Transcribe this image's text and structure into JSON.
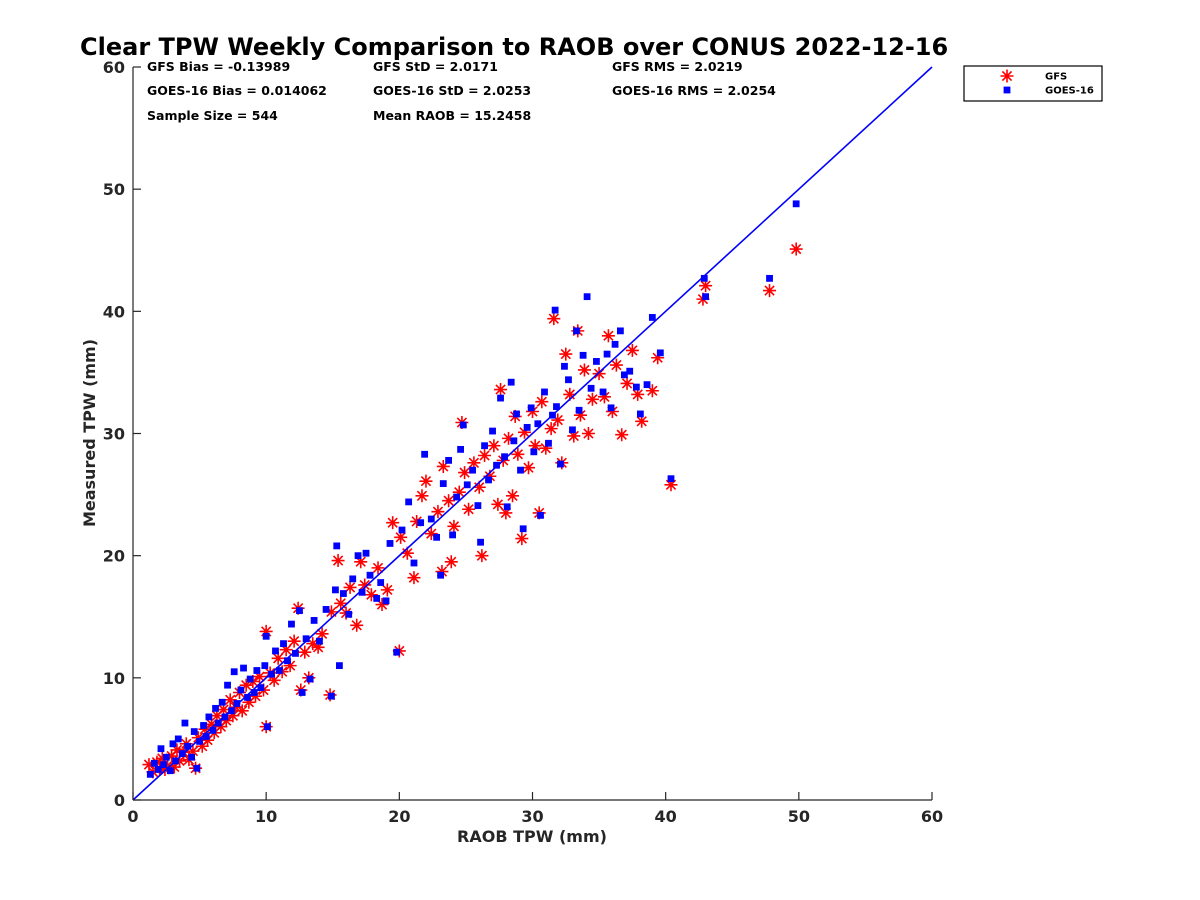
{
  "chart_data": {
    "type": "scatter",
    "title": "Clear TPW Weekly Comparison to RAOB over CONUS 2022-12-16",
    "xlabel": "RAOB TPW (mm)",
    "ylabel": "Measured TPW (mm)",
    "xlim": [
      0,
      60
    ],
    "ylim": [
      0,
      60
    ],
    "xticks": [
      "0",
      "10",
      "20",
      "30",
      "40",
      "50",
      "60"
    ],
    "yticks": [
      "0",
      "10",
      "20",
      "30",
      "40",
      "50",
      "60"
    ],
    "grid": false,
    "legend_position": "top-right outside",
    "reference_line": "1:1",
    "stats": [
      [
        "GFS Bias = -0.13989",
        "GFS StD = 2.0171",
        "GFS RMS = 2.0219"
      ],
      [
        "GOES-16 Bias = 0.014062",
        "GOES-16 StD = 2.0253",
        "GOES-16 RMS = 2.0254"
      ],
      [
        "Sample Size = 544",
        "Mean RAOB = 15.2458",
        ""
      ]
    ],
    "series": [
      {
        "name": "GFS",
        "marker": "asterisk",
        "color": "#ff0000",
        "points": [
          [
            1.2,
            2.9
          ],
          [
            1.5,
            2.3
          ],
          [
            1.8,
            3.1
          ],
          [
            2.0,
            2.6
          ],
          [
            2.2,
            3.4
          ],
          [
            2.4,
            2.5
          ],
          [
            2.6,
            2.8
          ],
          [
            2.9,
            3.6
          ],
          [
            3.1,
            2.7
          ],
          [
            3.3,
            4.1
          ],
          [
            3.5,
            3.2
          ],
          [
            3.8,
            3.9
          ],
          [
            4.0,
            4.6
          ],
          [
            4.2,
            3.3
          ],
          [
            4.5,
            4.0
          ],
          [
            4.7,
            2.6
          ],
          [
            4.9,
            5.1
          ],
          [
            5.2,
            4.4
          ],
          [
            5.4,
            5.8
          ],
          [
            5.6,
            4.9
          ],
          [
            5.9,
            6.2
          ],
          [
            6.1,
            5.5
          ],
          [
            6.3,
            6.9
          ],
          [
            6.6,
            6.0
          ],
          [
            6.8,
            7.4
          ],
          [
            7.0,
            6.5
          ],
          [
            7.3,
            8.2
          ],
          [
            7.5,
            6.9
          ],
          [
            7.7,
            7.6
          ],
          [
            8.0,
            8.8
          ],
          [
            8.2,
            7.3
          ],
          [
            8.5,
            9.4
          ],
          [
            8.7,
            8.0
          ],
          [
            9.0,
            9.7
          ],
          [
            9.2,
            8.5
          ],
          [
            9.5,
            10.1
          ],
          [
            9.8,
            9.0
          ],
          [
            10.0,
            13.8
          ],
          [
            10.0,
            6.0
          ],
          [
            10.3,
            10.4
          ],
          [
            10.6,
            9.8
          ],
          [
            10.9,
            11.6
          ],
          [
            11.2,
            10.5
          ],
          [
            11.5,
            12.3
          ],
          [
            11.8,
            11.0
          ],
          [
            12.1,
            13.0
          ],
          [
            12.4,
            15.7
          ],
          [
            12.6,
            9.0
          ],
          [
            12.9,
            12.1
          ],
          [
            13.2,
            10.0
          ],
          [
            13.5,
            12.8
          ],
          [
            13.9,
            12.5
          ],
          [
            14.2,
            13.6
          ],
          [
            14.8,
            8.6
          ],
          [
            14.9,
            15.4
          ],
          [
            15.4,
            19.6
          ],
          [
            15.6,
            16.1
          ],
          [
            16.0,
            15.3
          ],
          [
            16.3,
            17.4
          ],
          [
            16.8,
            14.3
          ],
          [
            17.1,
            19.5
          ],
          [
            17.4,
            17.6
          ],
          [
            17.9,
            16.8
          ],
          [
            18.4,
            19.0
          ],
          [
            18.7,
            16.0
          ],
          [
            19.1,
            17.2
          ],
          [
            19.5,
            22.7
          ],
          [
            20.0,
            12.2
          ],
          [
            20.1,
            21.5
          ],
          [
            20.6,
            20.2
          ],
          [
            21.1,
            18.2
          ],
          [
            21.3,
            22.8
          ],
          [
            21.7,
            24.9
          ],
          [
            22.0,
            26.1
          ],
          [
            22.4,
            21.8
          ],
          [
            22.9,
            23.6
          ],
          [
            23.2,
            18.7
          ],
          [
            23.3,
            27.3
          ],
          [
            23.7,
            24.5
          ],
          [
            23.9,
            19.5
          ],
          [
            24.1,
            22.4
          ],
          [
            24.5,
            25.2
          ],
          [
            24.7,
            30.9
          ],
          [
            24.9,
            26.8
          ],
          [
            25.2,
            23.8
          ],
          [
            25.6,
            27.6
          ],
          [
            26.0,
            25.6
          ],
          [
            26.2,
            20.0
          ],
          [
            26.4,
            28.2
          ],
          [
            26.8,
            26.5
          ],
          [
            27.1,
            29.0
          ],
          [
            27.4,
            24.2
          ],
          [
            27.6,
            33.6
          ],
          [
            27.8,
            27.8
          ],
          [
            28.0,
            23.5
          ],
          [
            28.2,
            29.6
          ],
          [
            28.5,
            24.9
          ],
          [
            28.7,
            31.4
          ],
          [
            28.9,
            28.3
          ],
          [
            29.2,
            21.4
          ],
          [
            29.4,
            30.1
          ],
          [
            29.7,
            27.2
          ],
          [
            30.0,
            31.8
          ],
          [
            30.2,
            29.0
          ],
          [
            30.5,
            23.5
          ],
          [
            30.7,
            32.6
          ],
          [
            31.0,
            28.8
          ],
          [
            31.4,
            30.4
          ],
          [
            31.6,
            39.4
          ],
          [
            31.9,
            31.1
          ],
          [
            32.2,
            27.6
          ],
          [
            32.5,
            36.5
          ],
          [
            32.8,
            33.2
          ],
          [
            33.1,
            29.8
          ],
          [
            33.4,
            38.4
          ],
          [
            33.6,
            31.5
          ],
          [
            33.9,
            35.2
          ],
          [
            34.2,
            30.0
          ],
          [
            34.5,
            32.8
          ],
          [
            35.0,
            34.9
          ],
          [
            35.4,
            33.0
          ],
          [
            35.7,
            38.0
          ],
          [
            36.0,
            31.8
          ],
          [
            36.3,
            35.6
          ],
          [
            36.7,
            29.9
          ],
          [
            37.1,
            34.1
          ],
          [
            37.5,
            36.8
          ],
          [
            37.9,
            33.2
          ],
          [
            38.2,
            31.0
          ],
          [
            39.0,
            33.5
          ],
          [
            39.4,
            36.2
          ],
          [
            40.4,
            25.8
          ],
          [
            42.8,
            41.0
          ],
          [
            43.0,
            42.1
          ],
          [
            47.8,
            41.7
          ],
          [
            49.8,
            45.1
          ]
        ]
      },
      {
        "name": "GOES-16",
        "marker": "square",
        "color": "#0000ff",
        "points": [
          [
            1.3,
            2.1
          ],
          [
            1.6,
            3.0
          ],
          [
            1.9,
            2.5
          ],
          [
            2.1,
            4.2
          ],
          [
            2.3,
            2.9
          ],
          [
            2.5,
            3.5
          ],
          [
            2.8,
            2.4
          ],
          [
            3.0,
            4.6
          ],
          [
            3.2,
            3.2
          ],
          [
            3.4,
            5.0
          ],
          [
            3.7,
            3.8
          ],
          [
            3.9,
            6.3
          ],
          [
            4.1,
            4.4
          ],
          [
            4.4,
            3.5
          ],
          [
            4.6,
            5.6
          ],
          [
            4.8,
            2.6
          ],
          [
            5.0,
            4.8
          ],
          [
            5.3,
            6.1
          ],
          [
            5.5,
            5.2
          ],
          [
            5.7,
            6.8
          ],
          [
            6.0,
            5.7
          ],
          [
            6.2,
            7.5
          ],
          [
            6.4,
            6.3
          ],
          [
            6.7,
            8.0
          ],
          [
            6.9,
            6.8
          ],
          [
            7.1,
            9.4
          ],
          [
            7.4,
            7.3
          ],
          [
            7.6,
            10.5
          ],
          [
            7.8,
            7.9
          ],
          [
            8.1,
            9.0
          ],
          [
            8.3,
            10.8
          ],
          [
            8.6,
            8.4
          ],
          [
            8.8,
            9.9
          ],
          [
            9.1,
            8.8
          ],
          [
            9.3,
            10.6
          ],
          [
            9.6,
            9.2
          ],
          [
            9.9,
            11.0
          ],
          [
            10.0,
            13.4
          ],
          [
            10.1,
            6.0
          ],
          [
            10.4,
            10.3
          ],
          [
            10.7,
            12.2
          ],
          [
            11.0,
            10.6
          ],
          [
            11.3,
            12.8
          ],
          [
            11.6,
            11.4
          ],
          [
            11.9,
            14.4
          ],
          [
            12.2,
            12.0
          ],
          [
            12.5,
            15.5
          ],
          [
            12.7,
            8.8
          ],
          [
            13.0,
            13.2
          ],
          [
            13.3,
            9.9
          ],
          [
            13.6,
            14.7
          ],
          [
            14.0,
            13.0
          ],
          [
            14.5,
            15.6
          ],
          [
            14.9,
            8.5
          ],
          [
            15.2,
            17.2
          ],
          [
            15.3,
            20.8
          ],
          [
            15.5,
            11.0
          ],
          [
            15.8,
            16.9
          ],
          [
            16.2,
            15.2
          ],
          [
            16.5,
            18.1
          ],
          [
            16.9,
            20.0
          ],
          [
            17.2,
            17.0
          ],
          [
            17.5,
            20.2
          ],
          [
            17.8,
            18.4
          ],
          [
            18.3,
            16.5
          ],
          [
            18.6,
            17.8
          ],
          [
            19.0,
            16.3
          ],
          [
            19.3,
            21.0
          ],
          [
            19.8,
            12.1
          ],
          [
            20.2,
            22.1
          ],
          [
            20.7,
            24.4
          ],
          [
            21.1,
            19.4
          ],
          [
            21.6,
            22.7
          ],
          [
            21.9,
            28.3
          ],
          [
            22.4,
            23.0
          ],
          [
            22.8,
            21.5
          ],
          [
            23.1,
            18.4
          ],
          [
            23.3,
            25.9
          ],
          [
            23.7,
            27.8
          ],
          [
            24.0,
            21.7
          ],
          [
            24.3,
            24.8
          ],
          [
            24.6,
            28.7
          ],
          [
            24.8,
            30.7
          ],
          [
            25.1,
            25.8
          ],
          [
            25.5,
            27.0
          ],
          [
            25.9,
            24.1
          ],
          [
            26.1,
            21.1
          ],
          [
            26.4,
            29.0
          ],
          [
            26.7,
            26.2
          ],
          [
            27.0,
            30.2
          ],
          [
            27.3,
            27.4
          ],
          [
            27.6,
            32.9
          ],
          [
            27.9,
            28.1
          ],
          [
            28.1,
            24.0
          ],
          [
            28.4,
            34.2
          ],
          [
            28.6,
            29.4
          ],
          [
            28.8,
            31.6
          ],
          [
            29.1,
            27.0
          ],
          [
            29.3,
            22.2
          ],
          [
            29.6,
            30.5
          ],
          [
            29.9,
            32.1
          ],
          [
            30.1,
            28.5
          ],
          [
            30.4,
            30.8
          ],
          [
            30.6,
            23.3
          ],
          [
            30.9,
            33.4
          ],
          [
            31.2,
            29.2
          ],
          [
            31.5,
            31.5
          ],
          [
            31.7,
            40.1
          ],
          [
            31.8,
            32.2
          ],
          [
            32.1,
            27.5
          ],
          [
            32.4,
            35.5
          ],
          [
            32.7,
            34.4
          ],
          [
            33.0,
            30.3
          ],
          [
            33.3,
            38.4
          ],
          [
            33.5,
            31.9
          ],
          [
            33.8,
            36.4
          ],
          [
            34.1,
            41.2
          ],
          [
            34.4,
            33.7
          ],
          [
            34.8,
            35.9
          ],
          [
            35.3,
            33.4
          ],
          [
            35.6,
            36.5
          ],
          [
            35.9,
            32.1
          ],
          [
            36.2,
            37.3
          ],
          [
            36.6,
            38.4
          ],
          [
            36.9,
            34.8
          ],
          [
            37.3,
            35.1
          ],
          [
            37.8,
            33.8
          ],
          [
            38.1,
            31.6
          ],
          [
            38.6,
            34.0
          ],
          [
            39.0,
            39.5
          ],
          [
            39.6,
            36.6
          ],
          [
            40.4,
            26.3
          ],
          [
            42.9,
            42.7
          ],
          [
            43.0,
            41.2
          ],
          [
            47.8,
            42.7
          ],
          [
            49.8,
            48.8
          ]
        ]
      }
    ]
  }
}
